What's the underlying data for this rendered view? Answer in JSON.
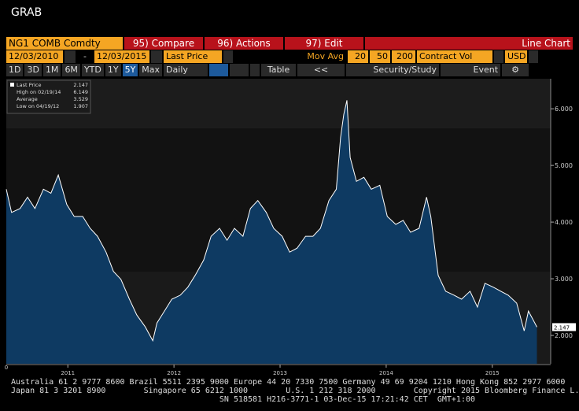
{
  "header": {
    "title": "GRAB"
  },
  "toolbar": {
    "security": "NG1 COMB Comdty",
    "compare": "95) Compare",
    "actions": "96) Actions",
    "edit": "97) Edit",
    "chart_type": "Line Chart"
  },
  "settings": {
    "start_date": "12/03/2010",
    "separator": "-",
    "end_date": "12/03/2015",
    "field": "Last Price",
    "mov_avg": "Mov Avg",
    "periods": [
      "20",
      "50",
      "200"
    ],
    "volume": "Contract Vol",
    "currency": "USD"
  },
  "ranges": {
    "buttons": [
      "1D",
      "3D",
      "1M",
      "6M",
      "YTD",
      "1Y",
      "5Y",
      "Max"
    ],
    "frequency": "Daily",
    "table": "Table",
    "back": "<<",
    "security_study": "Security/Study",
    "event": "Event"
  },
  "chart_data": {
    "type": "area",
    "axis_corner": "0",
    "stats": [
      {
        "label": "Last Price",
        "value": "2.147"
      },
      {
        "label": "High on 02/19/14",
        "value": "6.149"
      },
      {
        "label": "Average",
        "value": "3.529"
      },
      {
        "label": "Low on 04/19/12",
        "value": "1.907"
      }
    ],
    "x": [
      2010.92,
      2010.97,
      2011.05,
      2011.12,
      2011.19,
      2011.27,
      2011.34,
      2011.41,
      2011.49,
      2011.56,
      2011.64,
      2011.71,
      2011.78,
      2011.86,
      2011.93,
      2012.0,
      2012.08,
      2012.15,
      2012.23,
      2012.3,
      2012.34,
      2012.41,
      2012.48,
      2012.56,
      2012.63,
      2012.7,
      2012.78,
      2012.85,
      2012.93,
      2013.0,
      2013.07,
      2013.15,
      2013.22,
      2013.29,
      2013.37,
      2013.44,
      2013.52,
      2013.59,
      2013.66,
      2013.74,
      2013.81,
      2013.88,
      2013.96,
      2014.03,
      2014.07,
      2014.1,
      2014.13,
      2014.16,
      2014.22,
      2014.29,
      2014.36,
      2014.44,
      2014.51,
      2014.59,
      2014.66,
      2014.73,
      2014.81,
      2014.88,
      2014.92,
      2014.99,
      2015.06,
      2015.14,
      2015.21,
      2015.29,
      2015.36,
      2015.43,
      2015.51,
      2015.58,
      2015.65,
      2015.73,
      2015.8,
      2015.84,
      2015.88,
      2015.92
    ],
    "series": [
      {
        "name": "Last Price",
        "color": "#ffffff",
        "fill": "#0e3a62",
        "values": [
          4.58,
          4.17,
          4.24,
          4.44,
          4.24,
          4.58,
          4.51,
          4.83,
          4.31,
          4.1,
          4.1,
          3.89,
          3.75,
          3.47,
          3.13,
          2.99,
          2.64,
          2.36,
          2.15,
          1.907,
          2.22,
          2.43,
          2.64,
          2.71,
          2.85,
          3.06,
          3.33,
          3.75,
          3.89,
          3.68,
          3.89,
          3.75,
          4.24,
          4.38,
          4.17,
          3.89,
          3.75,
          3.47,
          3.54,
          3.75,
          3.75,
          3.89,
          4.38,
          4.58,
          5.49,
          5.9,
          6.149,
          5.14,
          4.72,
          4.79,
          4.58,
          4.65,
          4.1,
          3.96,
          4.03,
          3.82,
          3.89,
          4.44,
          4.1,
          3.06,
          2.78,
          2.71,
          2.64,
          2.78,
          2.5,
          2.92,
          2.85,
          2.78,
          2.71,
          2.57,
          2.08,
          2.43,
          2.29,
          2.147
        ]
      }
    ],
    "xlim": [
      2010.92,
      2016.05
    ],
    "xticks": [
      {
        "value": 2011.5,
        "label": "2011"
      },
      {
        "value": 2012.5,
        "label": "2012"
      },
      {
        "value": 2013.5,
        "label": "2013"
      },
      {
        "value": 2014.5,
        "label": "2014"
      },
      {
        "value": 2015.5,
        "label": "2015"
      }
    ],
    "ylim": [
      1.5,
      6.53
    ],
    "yticks": [
      {
        "value": 2,
        "label": "2.000"
      },
      {
        "value": 3,
        "label": "3.000"
      },
      {
        "value": 4,
        "label": "4.000"
      },
      {
        "value": 5,
        "label": "5.000"
      },
      {
        "value": 6,
        "label": "6.000"
      }
    ],
    "grid": false
  },
  "footer": {
    "lines": [
      "Australia 61 2 9777 8600 Brazil 5511 2395 9000 Europe 44 20 7330 7500 Germany 49 69 9204 1210 Hong Kong 852 2977 6000",
      "Japan 81 3 3201 8900        Singapore 65 6212 1000        U.S. 1 212 318 2000        Copyright 2015 Bloomberg Finance L.P.",
      "                                            SN 518581 H216-3771-1 03-Dec-15 17:21:42 CET  GMT+1:00"
    ]
  }
}
